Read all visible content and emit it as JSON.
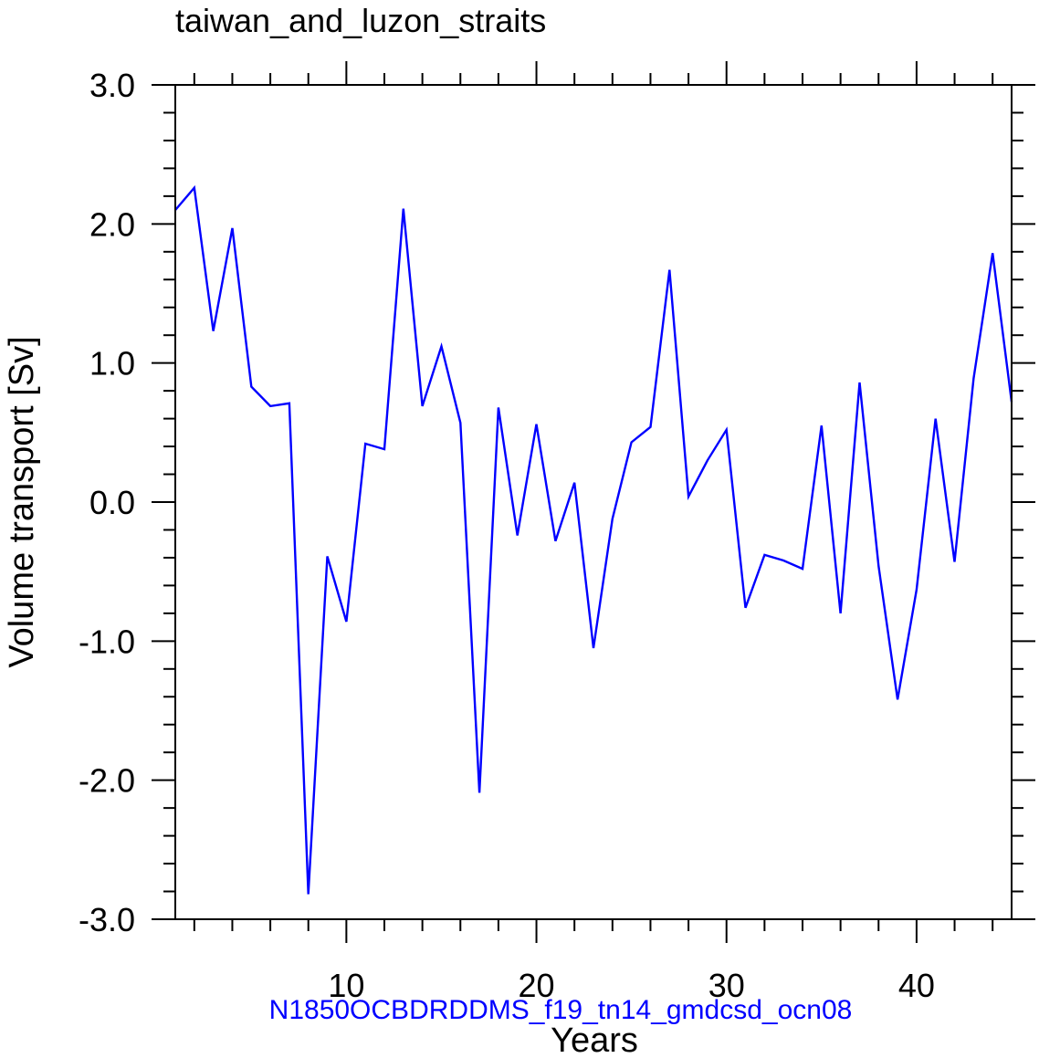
{
  "chart_data": {
    "type": "line",
    "title": "taiwan_and_luzon_straits",
    "xlabel": "Years",
    "ylabel": "Volume transport [Sv]",
    "subtitle": "N1850OCBDRDDMS_f19_tn14_gmdcsd_ocn08",
    "xlim": [
      1,
      45
    ],
    "ylim": [
      -3.0,
      3.0
    ],
    "xticks": [
      10,
      20,
      30,
      40
    ],
    "xtick_labels": [
      "10",
      "20",
      "30",
      "40"
    ],
    "yticks": [
      3.0,
      2.0,
      1.0,
      0.0,
      -1.0,
      -2.0,
      -3.0
    ],
    "ytick_labels": [
      "3.0",
      "2.0",
      "1.0",
      "0.0",
      "-1.0",
      "-2.0",
      "-3.0"
    ],
    "series": [
      {
        "name": "volume transport",
        "color": "#0000ff",
        "x": [
          1,
          2,
          3,
          4,
          5,
          6,
          7,
          8,
          9,
          10,
          11,
          12,
          13,
          14,
          15,
          16,
          17,
          18,
          19,
          20,
          21,
          22,
          23,
          24,
          25,
          26,
          27,
          28,
          29,
          30,
          31,
          32,
          33,
          34,
          35,
          36,
          37,
          38,
          39,
          40,
          41,
          42,
          43,
          44,
          45
        ],
        "values": [
          2.1,
          2.26,
          1.23,
          1.97,
          0.83,
          0.69,
          0.71,
          -2.82,
          -0.39,
          -0.86,
          0.42,
          0.38,
          2.11,
          0.69,
          1.12,
          0.57,
          -2.09,
          0.68,
          -0.24,
          0.56,
          -0.28,
          0.14,
          -1.05,
          -0.12,
          0.43,
          0.54,
          1.67,
          0.04,
          0.3,
          0.52,
          -0.76,
          -0.38,
          -0.42,
          -0.48,
          0.55,
          -0.8,
          0.86,
          -0.46,
          -1.42,
          -0.63,
          0.6,
          -0.43,
          0.89,
          1.79,
          0.72
        ]
      }
    ],
    "colors": {
      "line": "#0000ff",
      "axis": "#000000",
      "subtitle": "#0000ff"
    }
  }
}
